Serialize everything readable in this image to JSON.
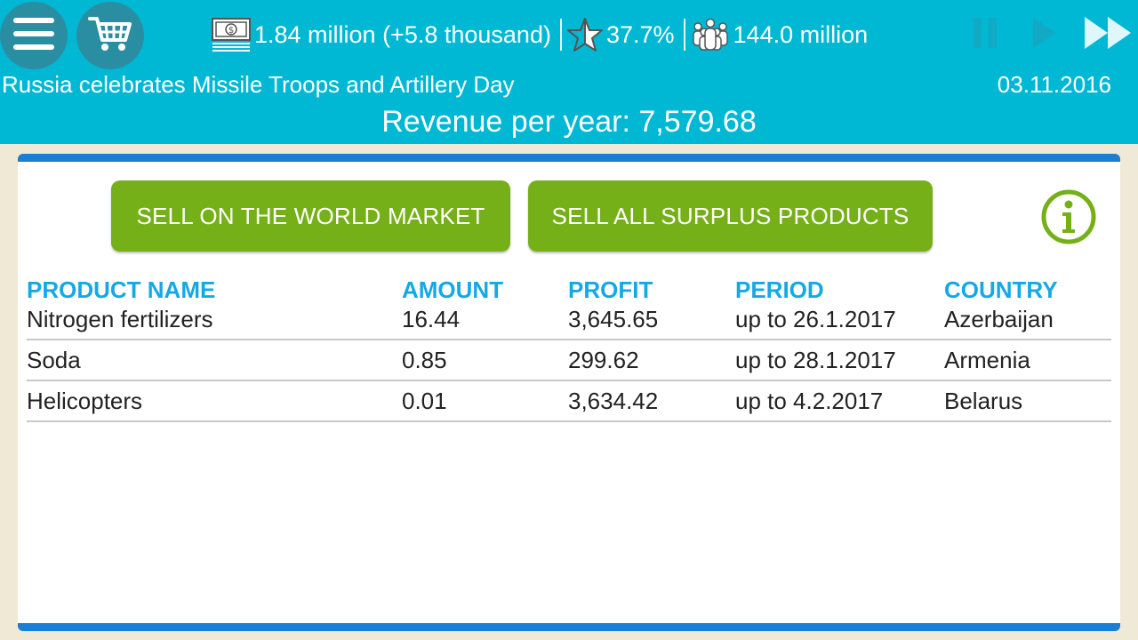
{
  "header": {
    "money": "1.84 million (+5.8 thousand)",
    "rating": "37.7%",
    "population": "144.0 million",
    "news": "Russia celebrates Missile Troops and Artillery Day",
    "date": "03.11.2016",
    "revenue": "Revenue per year: 7,579.68"
  },
  "icons": {
    "menu": "menu-icon",
    "cart": "cart-icon",
    "money": "banknote-icon",
    "rating": "star-icon",
    "population": "people-icon",
    "pause": "pause-icon",
    "play": "play-icon",
    "fast_forward": "fast-forward-icon",
    "info": "info-icon"
  },
  "actions": {
    "sell_world": "SELL ON THE WORLD MARKET",
    "sell_surplus": "SELL ALL SURPLUS PRODUCTS"
  },
  "table": {
    "headers": [
      "PRODUCT NAME",
      "AMOUNT",
      "PROFIT",
      "PERIOD",
      "COUNTRY"
    ],
    "rows": [
      [
        "Nitrogen fertilizers",
        "16.44",
        "3,645.65",
        "up to 26.1.2017",
        "Azerbaijan"
      ],
      [
        "Soda",
        "0.85",
        "299.62",
        "up to 28.1.2017",
        "Armenia"
      ],
      [
        "Helicopters",
        "0.01",
        "3,634.42",
        "up to 4.2.2017",
        "Belarus"
      ]
    ]
  },
  "colors": {
    "topbar": "#00b8d4",
    "round_button": "#2a8ea3",
    "action_button": "#76b019",
    "panel_border": "#1a7fd4",
    "header_text": "#14a9e6",
    "background": "#f0e9d6"
  }
}
